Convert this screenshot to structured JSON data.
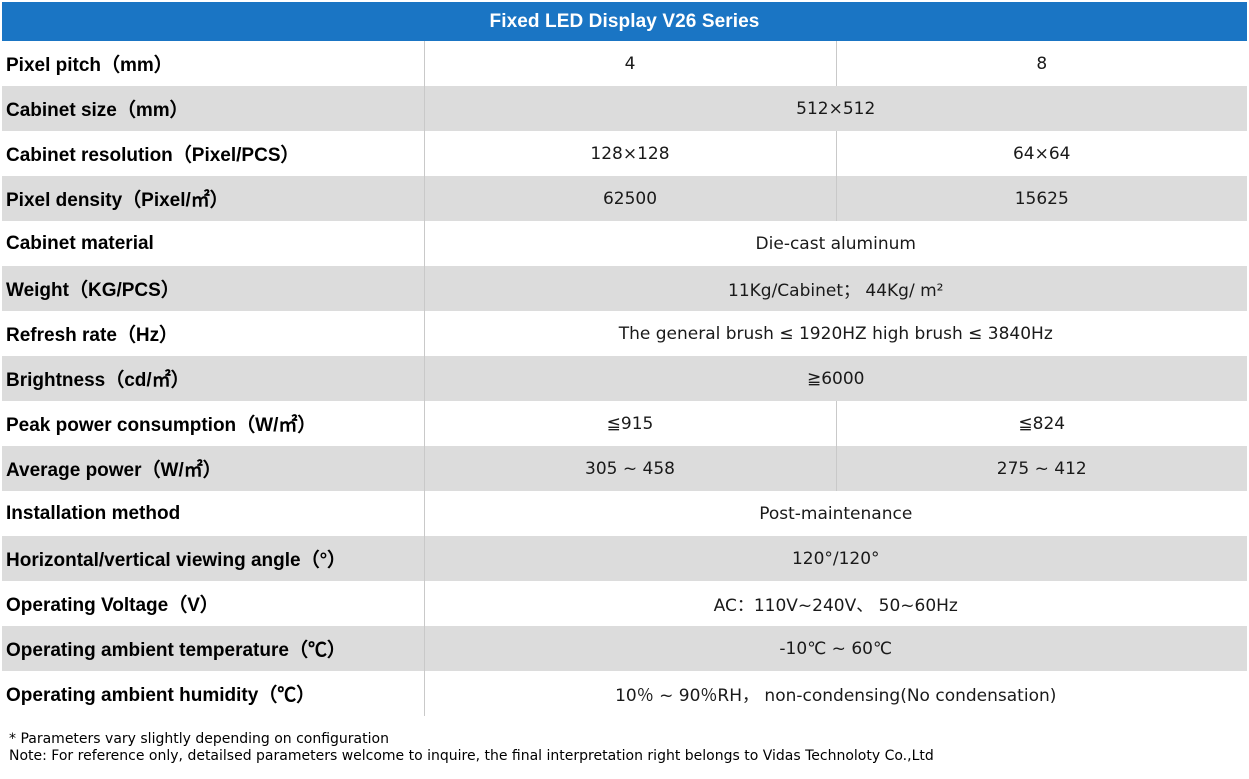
{
  "title": "Fixed LED Display V26 Series",
  "rows": [
    {
      "label": "Pixel pitch（mm）",
      "a": "4",
      "b": "8"
    },
    {
      "label": "Cabinet size（mm）",
      "value": "512×512"
    },
    {
      "label": "Cabinet resolution（Pixel/PCS）",
      "a": "128×128",
      "b": "64×64"
    },
    {
      "label": "Pixel density（Pixel/㎡）",
      "a": "62500",
      "b": "15625"
    },
    {
      "label": "Cabinet material",
      "value": "Die-cast aluminum"
    },
    {
      "label": "Weight（KG/PCS）",
      "value": "11Kg/Cabinet； 44Kg/ m²"
    },
    {
      "label": "Refresh rate（Hz）",
      "value": "The general brush ≤ 1920HZ high brush ≤ 3840Hz"
    },
    {
      "label": "Brightness（cd/㎡）",
      "value": "≧6000"
    },
    {
      "label": "Peak power consumption（W/㎡）",
      "a": "≦915",
      "b": "≦824"
    },
    {
      "label": "Average power（W/㎡）",
      "a": "305 ~ 458",
      "b": "275 ~ 412"
    },
    {
      "label": "Installation method",
      "value": "Post-maintenance"
    },
    {
      "label": "Horizontal/vertical viewing angle（°）",
      "value": "120°/120°"
    },
    {
      "label": "Operating Voltage（V）",
      "value": "AC：110V~240V、 50~60Hz"
    },
    {
      "label": "Operating ambient temperature（℃）",
      "value": "-10℃ ~ 60℃"
    },
    {
      "label": "Operating ambient humidity（℃）",
      "value": "10％ ~ 90％RH， non-condensing(No condensation)"
    }
  ],
  "notes": {
    "line1": "* Parameters vary slightly depending on configuration",
    "line2": "Note: For reference only, detailsed parameters welcome to inquire, the final interpretation right belongs to Vidas Technoloty Co.,Ltd"
  },
  "colors": {
    "title_bar": "#1a75c4",
    "title_text": "#ffffff",
    "row_shade": "#dcdcdc",
    "row_plain": "#ffffff"
  }
}
